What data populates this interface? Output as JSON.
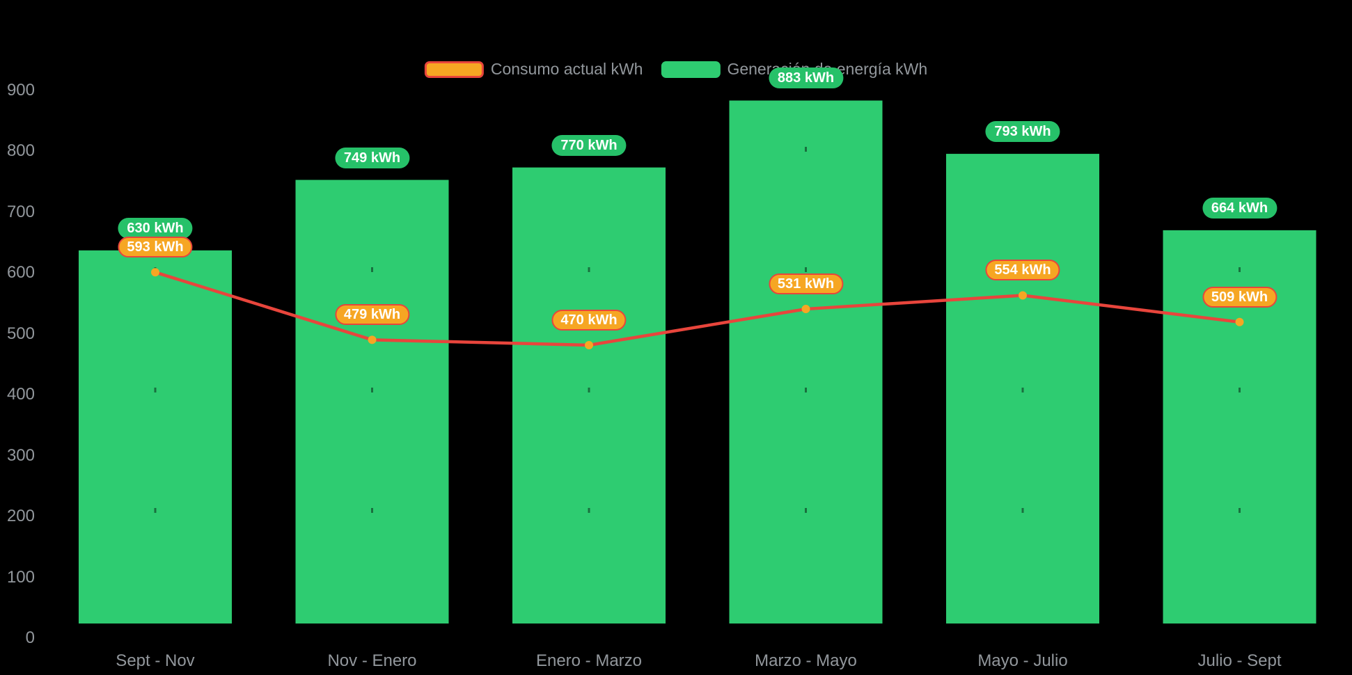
{
  "chart_data": {
    "type": "bar",
    "unit": "kWh",
    "title": "",
    "categories": [
      "Sept - Nov",
      "Nov - Enero",
      "Enero - Marzo",
      "Marzo - Mayo",
      "Mayo - Julio",
      "Julio - Sept"
    ],
    "series": [
      {
        "name": "Generación de energía kWh",
        "type": "bar",
        "values": [
          630,
          749,
          770,
          883,
          793,
          664
        ],
        "labels": [
          "630 kWh",
          "749 kWh",
          "770 kWh",
          "883 kWh",
          "793 kWh",
          "664 kWh"
        ],
        "color": "#2ecc71",
        "label_bg": "#26c169",
        "label_text_color": "#ffffff"
      },
      {
        "name": "Consumo actual kWh",
        "type": "line",
        "values": [
          593,
          479,
          470,
          531,
          554,
          509
        ],
        "labels": [
          "593 kWh",
          "479 kWh",
          "470 kWh",
          "531 kWh",
          "554 kWh",
          "509 kWh"
        ],
        "color": "#e8453c",
        "marker_color": "#f6a623",
        "label_bg": "#f6a623",
        "label_border": "#e8453c",
        "label_text_color": "#ffffff"
      }
    ],
    "y_ticks": [
      0,
      100,
      200,
      300,
      400,
      500,
      600,
      700,
      800,
      900
    ],
    "ylim": [
      0,
      900
    ],
    "grid": false,
    "legend_position": "top-center",
    "legend": [
      {
        "label": "Consumo actual kWh",
        "swatch_fill": "#f6a623",
        "swatch_border": "#e8453c"
      },
      {
        "label": "Generación de energía kWh",
        "swatch_fill": "#2ecc71",
        "swatch_border": "#2ecc71"
      }
    ],
    "background": "#000000",
    "axis_text_color": "#92979c"
  }
}
